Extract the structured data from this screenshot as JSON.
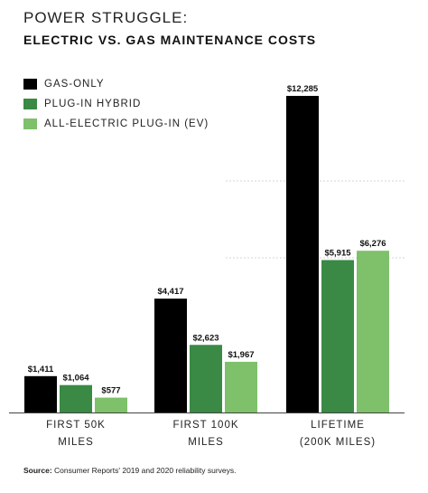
{
  "header": {
    "title": "POWER STRUGGLE:",
    "subtitle": "ELECTRIC VS. GAS MAINTENANCE COSTS"
  },
  "source": {
    "label": "Source:",
    "text": "Consumer Reports' 2019 and 2020 reliability surveys."
  },
  "chart_data": {
    "type": "bar",
    "title": "POWER STRUGGLE:",
    "subtitle": "ELECTRIC VS. GAS MAINTENANCE COSTS",
    "categories": [
      [
        "FIRST 50K",
        "MILES"
      ],
      [
        "FIRST 100K",
        "MILES"
      ],
      [
        "LIFETIME",
        "(200K MILES)"
      ]
    ],
    "series": [
      {
        "name": "GAS-ONLY",
        "color": "#000000",
        "values": [
          1411,
          4417,
          12285
        ],
        "labels": [
          "$1,411",
          "$4,417",
          "$12,285"
        ]
      },
      {
        "name": "PLUG-IN HYBRID",
        "color": "#3a8a45",
        "values": [
          1064,
          2623,
          5915
        ],
        "labels": [
          "$1,064",
          "$2,623",
          "$5,915"
        ]
      },
      {
        "name": "ALL-ELECTRIC PLUG-IN (EV)",
        "color": "#7ec16a",
        "values": [
          577,
          1967,
          6276
        ],
        "labels": [
          "$577",
          "$1,967",
          "$6,276"
        ]
      }
    ],
    "ylim": [
      0,
      12500
    ],
    "grid": true,
    "legend_position": "top-left",
    "xlabel": "",
    "ylabel": ""
  }
}
